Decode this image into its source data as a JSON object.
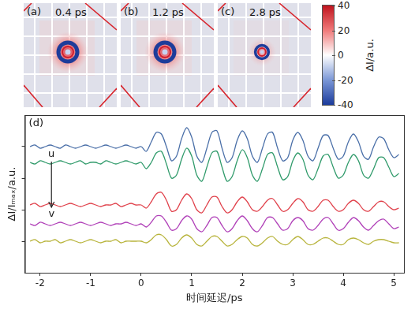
{
  "image_panels": [
    {
      "label": "(a)",
      "time": "0.4 ps"
    },
    {
      "label": "(b)",
      "time": "1.2 ps"
    },
    {
      "label": "(c)",
      "time": "2.8 ps"
    }
  ],
  "colorbar": {
    "label": "ΔI/a.u.",
    "range": [
      -40,
      40
    ],
    "ticks": [
      40,
      20,
      0,
      -20,
      -40
    ]
  },
  "chart_data": {
    "type": "line",
    "panel_label": "(d)",
    "annotations": [
      "u",
      "v"
    ],
    "x_label": "时间延迟/ps",
    "y_label": "ΔI/Iₘₐₓ/a.u.",
    "xlim": [
      -2.3,
      5.2
    ],
    "xticks": [
      -2,
      -1,
      0,
      1,
      2,
      3,
      4,
      5
    ],
    "ylim": [
      0,
      10
    ],
    "yticks": [
      2,
      4,
      6,
      8
    ],
    "grid": false,
    "tick_labels": "x",
    "x": [
      -2.2,
      -2.1,
      -2,
      -1.9,
      -1.8,
      -1.7,
      -1.6,
      -1.5,
      -1.4,
      -1.3,
      -1.2,
      -1.1,
      -1,
      -0.9,
      -0.8,
      -0.7,
      -0.6,
      -0.5,
      -0.4,
      -0.3,
      -0.2,
      -0.1,
      0,
      0.1,
      0.2,
      0.3,
      0.4,
      0.5,
      0.6,
      0.7,
      0.8,
      0.9,
      1,
      1.1,
      1.2,
      1.3,
      1.4,
      1.5,
      1.6,
      1.7,
      1.8,
      1.9,
      2,
      2.1,
      2.2,
      2.3,
      2.4,
      2.5,
      2.6,
      2.7,
      2.8,
      2.9,
      3,
      3.1,
      3.2,
      3.3,
      3.4,
      3.5,
      3.6,
      3.7,
      3.8,
      3.9,
      4,
      4.1,
      4.2,
      4.3,
      4.4,
      4.5,
      4.6,
      4.7,
      4.8,
      4.9,
      5,
      5.1
    ],
    "series": [
      {
        "color": "#4a6fa8",
        "values": [
          8.0,
          8.1,
          7.9,
          8.0,
          8.1,
          8.0,
          7.9,
          8.1,
          8.0,
          7.9,
          8.0,
          8.1,
          8.0,
          7.9,
          8.0,
          8.1,
          8.0,
          7.9,
          8.0,
          8.1,
          8.0,
          7.9,
          8.0,
          7.7,
          8.3,
          8.9,
          8.8,
          8.0,
          7.1,
          7.4,
          8.5,
          9.2,
          8.6,
          7.4,
          7.0,
          7.9,
          8.9,
          9.0,
          7.9,
          7.0,
          7.3,
          8.4,
          9.0,
          8.5,
          7.4,
          7.0,
          7.9,
          8.8,
          8.9,
          7.9,
          7.1,
          7.3,
          8.4,
          8.9,
          8.4,
          7.4,
          7.1,
          7.9,
          8.7,
          8.7,
          7.9,
          7.2,
          7.4,
          8.3,
          8.8,
          8.3,
          7.4,
          7.2,
          8.0,
          8.6,
          8.5,
          7.8,
          7.3,
          7.5
        ]
      },
      {
        "color": "#2f9a6a",
        "values": [
          7.0,
          6.9,
          7.1,
          7.0,
          6.9,
          7.0,
          7.1,
          7.0,
          6.9,
          7.0,
          7.1,
          6.9,
          7.0,
          7.0,
          6.9,
          7.1,
          7.0,
          6.9,
          7.0,
          7.1,
          7.0,
          6.9,
          7.0,
          6.6,
          7.0,
          7.6,
          7.7,
          6.9,
          6.0,
          6.2,
          7.2,
          7.9,
          7.4,
          6.2,
          5.8,
          6.7,
          7.6,
          7.7,
          6.7,
          5.8,
          6.1,
          7.1,
          7.8,
          7.3,
          6.2,
          5.8,
          6.6,
          7.5,
          7.6,
          6.7,
          5.9,
          6.1,
          7.1,
          7.6,
          7.2,
          6.2,
          5.9,
          6.6,
          7.4,
          7.5,
          6.7,
          6.0,
          6.2,
          7.0,
          7.5,
          7.1,
          6.2,
          6.0,
          6.6,
          7.3,
          7.3,
          6.7,
          6.1,
          6.3
        ]
      },
      {
        "color": "#e0404a",
        "values": [
          4.3,
          4.4,
          4.2,
          4.3,
          4.4,
          4.3,
          4.2,
          4.3,
          4.4,
          4.3,
          4.2,
          4.3,
          4.4,
          4.3,
          4.2,
          4.3,
          4.3,
          4.4,
          4.2,
          4.3,
          4.4,
          4.3,
          4.3,
          4.1,
          4.5,
          5.0,
          5.1,
          4.6,
          3.9,
          4.0,
          4.6,
          5.0,
          4.7,
          4.0,
          3.8,
          4.3,
          4.8,
          4.8,
          4.2,
          3.8,
          4.0,
          4.5,
          4.8,
          4.5,
          4.0,
          3.9,
          4.2,
          4.6,
          4.7,
          4.3,
          3.9,
          4.0,
          4.4,
          4.7,
          4.5,
          4.0,
          3.9,
          4.2,
          4.6,
          4.6,
          4.2,
          3.9,
          4.0,
          4.4,
          4.6,
          4.4,
          4.0,
          3.9,
          4.2,
          4.5,
          4.5,
          4.2,
          4.0,
          4.1
        ]
      },
      {
        "color": "#b040b8",
        "values": [
          3.1,
          3.0,
          3.2,
          3.1,
          3.0,
          3.1,
          3.2,
          3.1,
          3.0,
          3.1,
          3.2,
          3.1,
          3.0,
          3.1,
          3.2,
          3.1,
          3.0,
          3.1,
          3.1,
          3.2,
          3.1,
          3.0,
          3.1,
          2.9,
          3.2,
          3.6,
          3.6,
          3.2,
          2.7,
          2.8,
          3.3,
          3.6,
          3.4,
          2.8,
          2.6,
          3.0,
          3.5,
          3.5,
          3.0,
          2.6,
          2.8,
          3.3,
          3.6,
          3.3,
          2.8,
          2.6,
          3.0,
          3.5,
          3.5,
          3.1,
          2.7,
          2.8,
          3.3,
          3.5,
          3.3,
          2.8,
          2.7,
          3.0,
          3.4,
          3.5,
          3.1,
          2.7,
          2.8,
          3.2,
          3.5,
          3.3,
          2.9,
          2.7,
          3.0,
          3.3,
          3.4,
          3.1,
          2.8,
          2.9
        ]
      },
      {
        "color": "#b8b43c",
        "values": [
          2.0,
          2.1,
          1.9,
          2.0,
          2.0,
          2.1,
          1.9,
          2.0,
          2.1,
          2.0,
          1.9,
          2.0,
          2.1,
          2.0,
          1.9,
          2.0,
          2.0,
          2.1,
          1.9,
          2.0,
          2.0,
          2.0,
          2.0,
          1.9,
          2.1,
          2.4,
          2.4,
          2.1,
          1.7,
          1.8,
          2.2,
          2.4,
          2.2,
          1.8,
          1.7,
          2.0,
          2.3,
          2.3,
          2.0,
          1.7,
          1.8,
          2.1,
          2.3,
          2.2,
          1.8,
          1.7,
          1.9,
          2.2,
          2.3,
          2.0,
          1.8,
          1.8,
          2.1,
          2.3,
          2.1,
          1.8,
          1.8,
          2.0,
          2.2,
          2.2,
          2.0,
          1.8,
          1.8,
          2.1,
          2.2,
          2.1,
          1.9,
          1.8,
          2.0,
          2.1,
          2.1,
          2.0,
          1.9,
          1.9
        ]
      }
    ]
  }
}
